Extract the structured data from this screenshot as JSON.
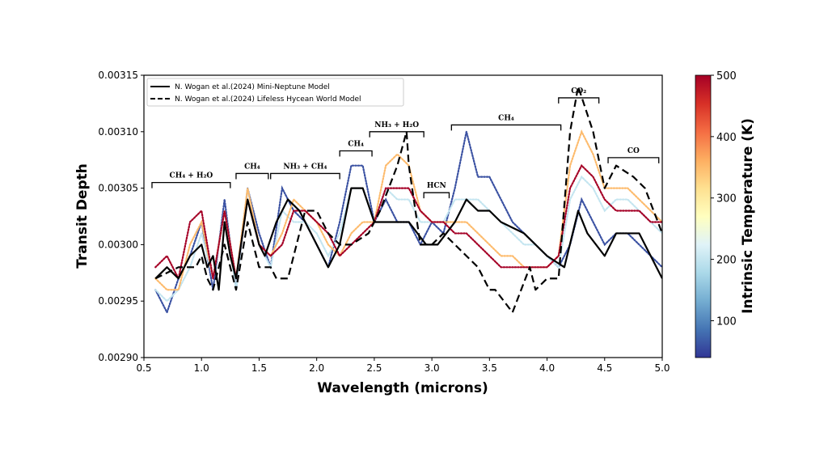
{
  "chart_data": {
    "type": "line",
    "xlabel": "Wavelength (microns)",
    "ylabel": "Transit Depth",
    "xlim": [
      0.5,
      5.0
    ],
    "ylim": [
      0.0029,
      0.00315
    ],
    "xticks": [
      "0.5",
      "1.0",
      "1.5",
      "2.0",
      "2.5",
      "3.0",
      "3.5",
      "4.0",
      "4.5",
      "5.0"
    ],
    "yticks": [
      "0.00290",
      "0.00295",
      "0.00300",
      "0.00305",
      "0.00310",
      "0.00315"
    ],
    "grid": false,
    "legend_placement": "top-left",
    "legend": [
      {
        "name": "N. Wogan et al.(2024) Mini-Neptune Model",
        "style": "solid",
        "color": "#000000"
      },
      {
        "name": "N. Wogan et al.(2024) Lifeless Hycean World Model",
        "style": "dashed",
        "color": "#000000"
      }
    ],
    "model_series": [
      {
        "name": "N. Wogan et al.(2024) Mini-Neptune Model",
        "x": [
          0.6,
          0.7,
          0.8,
          0.9,
          1.0,
          1.05,
          1.1,
          1.15,
          1.2,
          1.25,
          1.3,
          1.4,
          1.5,
          1.55,
          1.65,
          1.75,
          1.85,
          2.0,
          2.1,
          2.2,
          2.3,
          2.4,
          2.5,
          2.6,
          2.8,
          2.95,
          3.05,
          3.2,
          3.3,
          3.4,
          3.5,
          3.6,
          3.8,
          4.0,
          4.15,
          4.27,
          4.35,
          4.5,
          4.6,
          4.8,
          4.95,
          5.0
        ],
        "y": [
          0.00297,
          0.00298,
          0.00297,
          0.00299,
          0.003,
          0.00298,
          0.00299,
          0.00296,
          0.00302,
          0.00299,
          0.00297,
          0.00304,
          0.003,
          0.00299,
          0.00302,
          0.00304,
          0.00303,
          0.003,
          0.00298,
          0.003,
          0.00305,
          0.00305,
          0.00302,
          0.00302,
          0.00302,
          0.003,
          0.003,
          0.00302,
          0.00304,
          0.00303,
          0.00303,
          0.00302,
          0.00301,
          0.00299,
          0.00298,
          0.00303,
          0.00301,
          0.00299,
          0.00301,
          0.00301,
          0.00298,
          0.00297
        ]
      },
      {
        "name": "N. Wogan et al.(2024) Lifeless Hycean World Model",
        "x": [
          0.6,
          0.8,
          0.95,
          1.0,
          1.05,
          1.1,
          1.2,
          1.3,
          1.4,
          1.5,
          1.6,
          1.65,
          1.75,
          1.9,
          2.0,
          2.1,
          2.2,
          2.3,
          2.45,
          2.55,
          2.7,
          2.78,
          2.8,
          2.9,
          3.0,
          3.1,
          3.2,
          3.3,
          3.4,
          3.5,
          3.55,
          3.7,
          3.85,
          3.9,
          4.0,
          4.1,
          4.2,
          4.27,
          4.4,
          4.5,
          4.6,
          4.75,
          4.85,
          5.0
        ],
        "y": [
          0.00297,
          0.00298,
          0.00298,
          0.00299,
          0.00297,
          0.00296,
          0.003,
          0.00296,
          0.00302,
          0.00298,
          0.00298,
          0.00297,
          0.00297,
          0.00303,
          0.00303,
          0.00301,
          0.003,
          0.003,
          0.00301,
          0.00303,
          0.00307,
          0.0031,
          0.00307,
          0.003,
          0.003,
          0.00301,
          0.003,
          0.00299,
          0.00298,
          0.00296,
          0.00296,
          0.00294,
          0.00298,
          0.00296,
          0.00297,
          0.00297,
          0.0031,
          0.00314,
          0.0031,
          0.00305,
          0.00307,
          0.00306,
          0.00305,
          0.00301
        ]
      }
    ],
    "temperature_series": {
      "x": [
        0.6,
        0.7,
        0.8,
        0.9,
        1.0,
        1.1,
        1.2,
        1.3,
        1.4,
        1.5,
        1.6,
        1.7,
        1.8,
        1.9,
        2.0,
        2.1,
        2.2,
        2.3,
        2.4,
        2.5,
        2.6,
        2.7,
        2.8,
        2.9,
        3.0,
        3.1,
        3.2,
        3.3,
        3.4,
        3.5,
        3.6,
        3.7,
        3.8,
        3.9,
        4.0,
        4.1,
        4.2,
        4.3,
        4.4,
        4.5,
        4.6,
        4.7,
        4.8,
        4.9,
        5.0
      ],
      "series": [
        {
          "temperature_K": 60,
          "y": [
            0.00296,
            0.00294,
            0.00297,
            0.00299,
            0.00302,
            0.00296,
            0.00304,
            0.00296,
            0.00305,
            0.00301,
            0.00298,
            0.00305,
            0.00303,
            0.00302,
            0.003,
            0.00298,
            0.00302,
            0.00307,
            0.00307,
            0.00302,
            0.00304,
            0.00302,
            0.00302,
            0.003,
            0.00302,
            0.00301,
            0.00305,
            0.0031,
            0.00306,
            0.00306,
            0.00304,
            0.00302,
            0.00301,
            0.003,
            0.00299,
            0.00298,
            0.003,
            0.00304,
            0.00302,
            0.003,
            0.00301,
            0.00301,
            0.003,
            0.00299,
            0.00298
          ]
        },
        {
          "temperature_K": 200,
          "y": [
            0.00296,
            0.00295,
            0.00296,
            0.00298,
            0.00301,
            0.00297,
            0.00303,
            0.00296,
            0.00305,
            0.003,
            0.00298,
            0.00303,
            0.00302,
            0.00302,
            0.00301,
            0.00299,
            0.00301,
            0.00305,
            0.00305,
            0.00302,
            0.00305,
            0.00304,
            0.00304,
            0.00302,
            0.00302,
            0.00302,
            0.00304,
            0.00304,
            0.00304,
            0.00303,
            0.00302,
            0.00301,
            0.003,
            0.003,
            0.00299,
            0.00298,
            0.00304,
            0.00306,
            0.00305,
            0.00303,
            0.00304,
            0.00304,
            0.00303,
            0.00302,
            0.00301
          ]
        },
        {
          "temperature_K": 350,
          "y": [
            0.00297,
            0.00296,
            0.00296,
            0.003,
            0.00302,
            0.00297,
            0.00303,
            0.00297,
            0.00305,
            0.003,
            0.00299,
            0.00301,
            0.00304,
            0.00303,
            0.00302,
            0.003,
            0.00299,
            0.00301,
            0.00302,
            0.00302,
            0.00307,
            0.00308,
            0.00307,
            0.00303,
            0.00302,
            0.00302,
            0.00302,
            0.00302,
            0.00301,
            0.003,
            0.00299,
            0.00299,
            0.00298,
            0.00298,
            0.00298,
            0.00299,
            0.00307,
            0.0031,
            0.00308,
            0.00305,
            0.00305,
            0.00305,
            0.00304,
            0.00303,
            0.00302
          ]
        },
        {
          "temperature_K": 500,
          "y": [
            0.00298,
            0.00299,
            0.00297,
            0.00302,
            0.00303,
            0.00297,
            0.00303,
            0.00297,
            0.00304,
            0.003,
            0.00299,
            0.003,
            0.00303,
            0.00303,
            0.00302,
            0.00301,
            0.00299,
            0.003,
            0.00301,
            0.00302,
            0.00305,
            0.00305,
            0.00305,
            0.00303,
            0.00302,
            0.00302,
            0.00301,
            0.00301,
            0.003,
            0.00299,
            0.00298,
            0.00298,
            0.00298,
            0.00298,
            0.00298,
            0.00299,
            0.00305,
            0.00307,
            0.00306,
            0.00304,
            0.00303,
            0.00303,
            0.00303,
            0.00302,
            0.00302
          ]
        }
      ]
    },
    "annotations": [
      {
        "label": "CH₄ + H₂O",
        "x_range": [
          0.57,
          1.25
        ],
        "y": 0.003055
      },
      {
        "label": "CH₄",
        "x_range": [
          1.3,
          1.58
        ],
        "y": 0.003063
      },
      {
        "label": "NH₃ + CH₄",
        "x_range": [
          1.6,
          2.2
        ],
        "y": 0.003063
      },
      {
        "label": "CH₄",
        "x_range": [
          2.2,
          2.48
        ],
        "y": 0.003083
      },
      {
        "label": "NH₃ + H₂O",
        "x_range": [
          2.46,
          2.93
        ],
        "y": 0.0031
      },
      {
        "label": "HCN",
        "x_range": [
          2.93,
          3.15
        ],
        "y": 0.003046
      },
      {
        "label": "CH₄",
        "x_range": [
          3.17,
          4.12
        ],
        "y": 0.003106
      },
      {
        "label": "CO₂",
        "x_range": [
          4.1,
          4.45
        ],
        "y": 0.00313
      },
      {
        "label": "CO",
        "x_range": [
          4.53,
          4.97
        ],
        "y": 0.003077
      }
    ],
    "colorbar": {
      "label": "Intrinsic Temperature (K)",
      "range": [
        40,
        500
      ],
      "ticks": [
        "100",
        "200",
        "300",
        "400",
        "500"
      ],
      "colormap": [
        "#313695",
        "#4575b4",
        "#74add1",
        "#abd9e9",
        "#e0f3f8",
        "#ffffbf",
        "#fee090",
        "#fdae61",
        "#f46d43",
        "#d73027",
        "#a50026"
      ]
    }
  }
}
